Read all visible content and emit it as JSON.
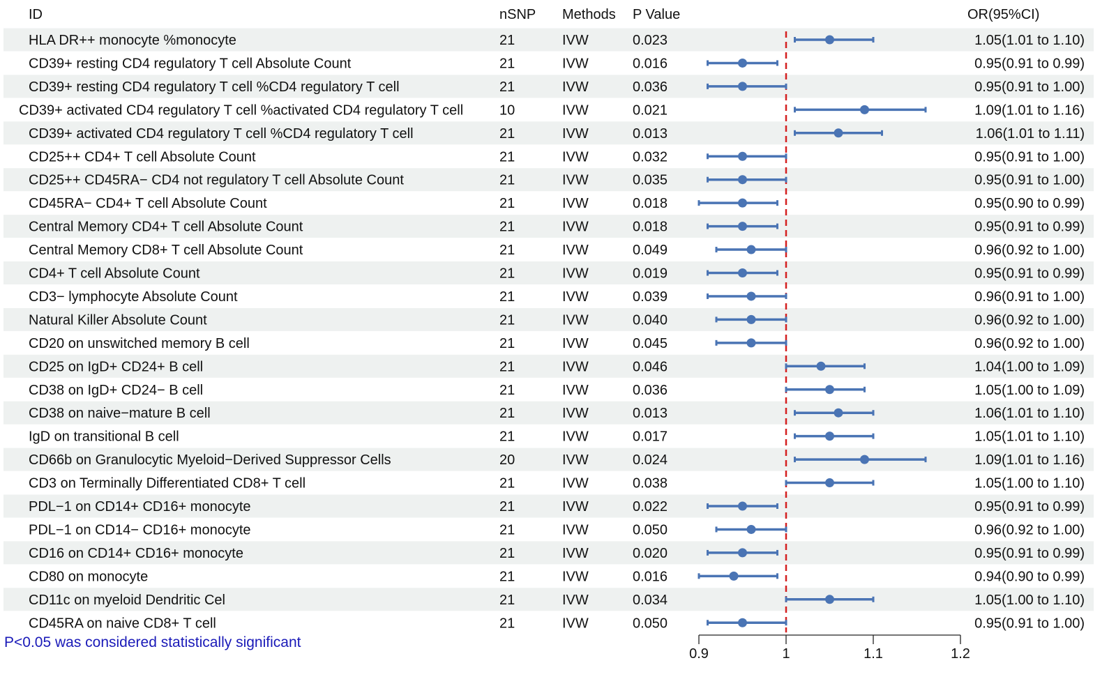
{
  "chart_data": {
    "type": "forest",
    "title": "",
    "columns": {
      "id": "ID",
      "nsnp": "nSNP",
      "method": "Methods",
      "pvalue": "P Value",
      "or": "OR(95%CI)"
    },
    "rows": [
      {
        "id": "HLA DR++ monocyte %monocyte",
        "nsnp": "21",
        "method": "IVW",
        "p": "0.023",
        "or": 1.05,
        "lo": 1.01,
        "hi": 1.1,
        "or_text": "1.05(1.01 to 1.10)"
      },
      {
        "id": "CD39+ resting CD4 regulatory T cell Absolute Count",
        "nsnp": "21",
        "method": "IVW",
        "p": "0.016",
        "or": 0.95,
        "lo": 0.91,
        "hi": 0.99,
        "or_text": "0.95(0.91 to 0.99)"
      },
      {
        "id": "CD39+ resting CD4 regulatory T cell %CD4 regulatory T cell",
        "nsnp": "21",
        "method": "IVW",
        "p": "0.036",
        "or": 0.95,
        "lo": 0.91,
        "hi": 1.0,
        "or_text": "0.95(0.91 to 1.00)"
      },
      {
        "id": "CD39+ activated CD4 regulatory T cell %activated CD4 regulatory T cell",
        "nsnp": "10",
        "method": "IVW",
        "p": "0.021",
        "or": 1.09,
        "lo": 1.01,
        "hi": 1.16,
        "or_text": "1.09(1.01 to 1.16)"
      },
      {
        "id": "CD39+ activated CD4 regulatory T cell %CD4 regulatory T cell",
        "nsnp": "21",
        "method": "IVW",
        "p": "0.013",
        "or": 1.06,
        "lo": 1.01,
        "hi": 1.11,
        "or_text": "1.06(1.01 to 1.11)"
      },
      {
        "id": "CD25++ CD4+ T cell Absolute Count",
        "nsnp": "21",
        "method": "IVW",
        "p": "0.032",
        "or": 0.95,
        "lo": 0.91,
        "hi": 1.0,
        "or_text": "0.95(0.91 to 1.00)"
      },
      {
        "id": "CD25++ CD45RA− CD4 not regulatory T cell Absolute Count",
        "nsnp": "21",
        "method": "IVW",
        "p": "0.035",
        "or": 0.95,
        "lo": 0.91,
        "hi": 1.0,
        "or_text": "0.95(0.91 to 1.00)"
      },
      {
        "id": "CD45RA− CD4+ T cell Absolute Count",
        "nsnp": "21",
        "method": "IVW",
        "p": "0.018",
        "or": 0.95,
        "lo": 0.9,
        "hi": 0.99,
        "or_text": "0.95(0.90 to 0.99)"
      },
      {
        "id": "Central Memory CD4+ T cell Absolute Count",
        "nsnp": "21",
        "method": "IVW",
        "p": "0.018",
        "or": 0.95,
        "lo": 0.91,
        "hi": 0.99,
        "or_text": "0.95(0.91 to 0.99)"
      },
      {
        "id": "Central Memory CD8+ T cell Absolute Count",
        "nsnp": "21",
        "method": "IVW",
        "p": "0.049",
        "or": 0.96,
        "lo": 0.92,
        "hi": 1.0,
        "or_text": "0.96(0.92 to 1.00)"
      },
      {
        "id": "CD4+ T cell Absolute Count",
        "nsnp": "21",
        "method": "IVW",
        "p": "0.019",
        "or": 0.95,
        "lo": 0.91,
        "hi": 0.99,
        "or_text": "0.95(0.91 to 0.99)"
      },
      {
        "id": "CD3− lymphocyte Absolute Count",
        "nsnp": "21",
        "method": "IVW",
        "p": "0.039",
        "or": 0.96,
        "lo": 0.91,
        "hi": 1.0,
        "or_text": "0.96(0.91 to 1.00)"
      },
      {
        "id": "Natural Killer Absolute Count",
        "nsnp": "21",
        "method": "IVW",
        "p": "0.040",
        "or": 0.96,
        "lo": 0.92,
        "hi": 1.0,
        "or_text": "0.96(0.92 to 1.00)"
      },
      {
        "id": "CD20 on unswitched memory B cell",
        "nsnp": "21",
        "method": "IVW",
        "p": "0.045",
        "or": 0.96,
        "lo": 0.92,
        "hi": 1.0,
        "or_text": "0.96(0.92 to 1.00)"
      },
      {
        "id": "CD25 on IgD+ CD24+ B cell",
        "nsnp": "21",
        "method": "IVW",
        "p": "0.046",
        "or": 1.04,
        "lo": 1.0,
        "hi": 1.09,
        "or_text": "1.04(1.00 to 1.09)"
      },
      {
        "id": "CD38 on IgD+ CD24− B cell",
        "nsnp": "21",
        "method": "IVW",
        "p": "0.036",
        "or": 1.05,
        "lo": 1.0,
        "hi": 1.09,
        "or_text": "1.05(1.00 to 1.09)"
      },
      {
        "id": "CD38 on naive−mature B cell",
        "nsnp": "21",
        "method": "IVW",
        "p": "0.013",
        "or": 1.06,
        "lo": 1.01,
        "hi": 1.1,
        "or_text": "1.06(1.01 to 1.10)"
      },
      {
        "id": "IgD on transitional B cell",
        "nsnp": "21",
        "method": "IVW",
        "p": "0.017",
        "or": 1.05,
        "lo": 1.01,
        "hi": 1.1,
        "or_text": "1.05(1.01 to 1.10)"
      },
      {
        "id": "CD66b on Granulocytic Myeloid−Derived Suppressor Cells",
        "nsnp": "20",
        "method": "IVW",
        "p": "0.024",
        "or": 1.09,
        "lo": 1.01,
        "hi": 1.16,
        "or_text": "1.09(1.01 to 1.16)"
      },
      {
        "id": "CD3 on Terminally Differentiated CD8+ T cell",
        "nsnp": "21",
        "method": "IVW",
        "p": "0.038",
        "or": 1.05,
        "lo": 1.0,
        "hi": 1.1,
        "or_text": "1.05(1.00 to 1.10)"
      },
      {
        "id": "PDL−1 on CD14+ CD16+ monocyte",
        "nsnp": "21",
        "method": "IVW",
        "p": "0.022",
        "or": 0.95,
        "lo": 0.91,
        "hi": 0.99,
        "or_text": "0.95(0.91 to 0.99)"
      },
      {
        "id": "PDL−1 on CD14− CD16+ monocyte",
        "nsnp": "21",
        "method": "IVW",
        "p": "0.050",
        "or": 0.96,
        "lo": 0.92,
        "hi": 1.0,
        "or_text": "0.96(0.92 to 1.00)"
      },
      {
        "id": "CD16 on CD14+ CD16+ monocyte",
        "nsnp": "21",
        "method": "IVW",
        "p": "0.020",
        "or": 0.95,
        "lo": 0.91,
        "hi": 0.99,
        "or_text": "0.95(0.91 to 0.99)"
      },
      {
        "id": "CD80 on monocyte",
        "nsnp": "21",
        "method": "IVW",
        "p": "0.016",
        "or": 0.94,
        "lo": 0.9,
        "hi": 0.99,
        "or_text": "0.94(0.90 to 0.99)"
      },
      {
        "id": "CD11c on myeloid Dendritic Cel",
        "nsnp": "21",
        "method": "IVW",
        "p": "0.034",
        "or": 1.05,
        "lo": 1.0,
        "hi": 1.1,
        "or_text": "1.05(1.00 to 1.10)"
      },
      {
        "id": "CD45RA on naive CD8+ T cell",
        "nsnp": "21",
        "method": "IVW",
        "p": "0.050",
        "or": 0.95,
        "lo": 0.91,
        "hi": 1.0,
        "or_text": "0.95(0.91 to 1.00)"
      }
    ],
    "xaxis": {
      "range": [
        0.9,
        1.2
      ],
      "ticks": [
        0.9,
        1.0,
        1.1,
        1.2
      ],
      "tick_labels": [
        "0.9",
        "1",
        "1.1",
        "1.2"
      ],
      "label": ""
    },
    "reference_line": 1.0,
    "footnote": "P<0.05 was considered statistically significant",
    "colors": {
      "point": "#4a74b4",
      "reference": "#d42020",
      "band": "#eef1f0",
      "footnote": "#1a1ab8"
    }
  }
}
